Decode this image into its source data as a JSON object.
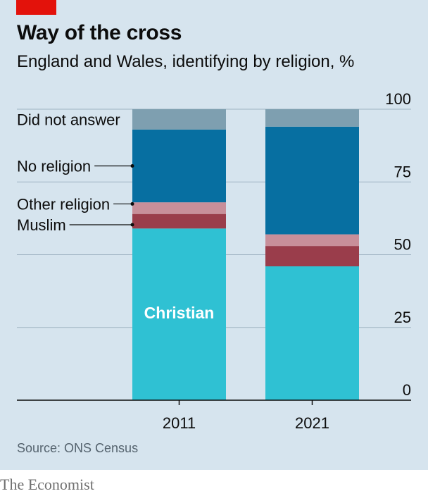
{
  "header": {
    "title": "Way of the cross",
    "subtitle": "England and Wales, identifying by religion, %"
  },
  "footer": {
    "source": "Source: ONS Census",
    "brand": "The Economist"
  },
  "colors": {
    "background": "#d6e4ee",
    "accent_tag": "#e3120b",
    "christian": "#2fc1d3",
    "muslim": "#9a3d4b",
    "other_religion": "#c88f9a",
    "no_religion": "#076fa1",
    "did_not_answer": "#7e9fb0"
  },
  "chart_data": {
    "type": "bar",
    "stacked": true,
    "categories": [
      "2011",
      "2021"
    ],
    "series": [
      {
        "name": "Christian",
        "key": "christian",
        "values": [
          59,
          46
        ]
      },
      {
        "name": "Muslim",
        "key": "muslim",
        "values": [
          5,
          7
        ]
      },
      {
        "name": "Other religion",
        "key": "other_religion",
        "values": [
          4,
          4
        ]
      },
      {
        "name": "No religion",
        "key": "no_religion",
        "values": [
          25,
          37
        ]
      },
      {
        "name": "Did not answer",
        "key": "did_not_answer",
        "values": [
          7,
          6
        ]
      }
    ],
    "ylim": [
      0,
      100
    ],
    "yticks": [
      0,
      25,
      50,
      75,
      100
    ],
    "y_axis_side": "right",
    "grid": true,
    "legend_placement": "left",
    "annotations": [
      {
        "label": "Christian",
        "series": "Christian",
        "category": "2011"
      },
      {
        "label": "Did not answer",
        "series": "Did not answer"
      },
      {
        "label": "No religion",
        "series": "No religion"
      },
      {
        "label": "Other religion",
        "series": "Other religion"
      },
      {
        "label": "Muslim",
        "series": "Muslim"
      }
    ]
  }
}
